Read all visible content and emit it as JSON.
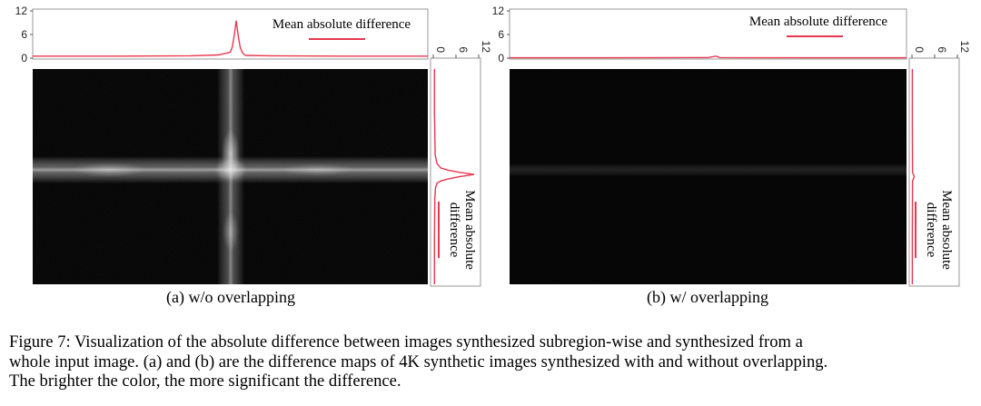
{
  "caption": {
    "line1": "Figure 7: Visualization of the absolute difference between images synthesized subregion-wise and synthesized from a",
    "line2": "whole input image. (a) and (b) are the difference maps of 4K synthetic images synthesized with and without overlapping.",
    "line3": "The brighter the color, the more significant the difference."
  },
  "colors": {
    "curve": "#e8384f",
    "map_background": "#050505",
    "artifact": "#c8c8c8",
    "frame": "#999999"
  },
  "chart_data": [
    {
      "type": "line",
      "panel": "(a) w/o overlapping",
      "subtitle": "(a) w/o overlapping",
      "legend": "Mean absolute difference",
      "top_profile": {
        "axis_ticks": [
          "0",
          "6",
          "12"
        ],
        "ylim": [
          0,
          12
        ],
        "x": [
          0,
          0.2,
          0.4,
          0.47,
          0.5,
          0.505,
          0.51,
          0.515,
          0.52,
          0.525,
          0.53,
          0.535,
          0.54,
          0.6,
          0.8,
          1
        ],
        "y": [
          0.5,
          0.5,
          0.6,
          0.8,
          1.5,
          2.8,
          5.8,
          9.5,
          5.8,
          2.8,
          1.5,
          0.9,
          0.7,
          0.6,
          0.5,
          0.5
        ]
      },
      "side_profile": {
        "axis_ticks": [
          "0",
          "6",
          "12"
        ],
        "xlim": [
          0,
          12
        ],
        "y": [
          0,
          0.2,
          0.4,
          0.44,
          0.46,
          0.47,
          0.48,
          0.49,
          0.5,
          0.51,
          0.52,
          0.53,
          0.55,
          0.6,
          0.8,
          1
        ],
        "x": [
          0.3,
          0.3,
          0.5,
          1.0,
          2.0,
          4.0,
          7.0,
          10.8,
          7.0,
          4.0,
          2.0,
          1.0,
          0.6,
          0.4,
          0.3,
          0.3
        ]
      }
    },
    {
      "type": "line",
      "panel": "(b) w/ overlapping",
      "subtitle": "(b) w/ overlapping",
      "legend": "Mean absolute difference",
      "top_profile": {
        "axis_ticks": [
          "0",
          "6",
          "12"
        ],
        "ylim": [
          0,
          12
        ],
        "x": [
          0,
          0.25,
          0.5,
          0.52,
          0.53,
          0.75,
          1
        ],
        "y": [
          0.1,
          0.1,
          0.15,
          0.5,
          0.15,
          0.1,
          0.1
        ]
      },
      "side_profile": {
        "axis_ticks": [
          "0",
          "6",
          "12"
        ],
        "xlim": [
          0,
          12
        ],
        "y": [
          0,
          0.25,
          0.48,
          0.5,
          0.52,
          0.75,
          1
        ],
        "x": [
          0.1,
          0.1,
          0.15,
          0.6,
          0.15,
          0.1,
          0.1
        ]
      }
    }
  ]
}
